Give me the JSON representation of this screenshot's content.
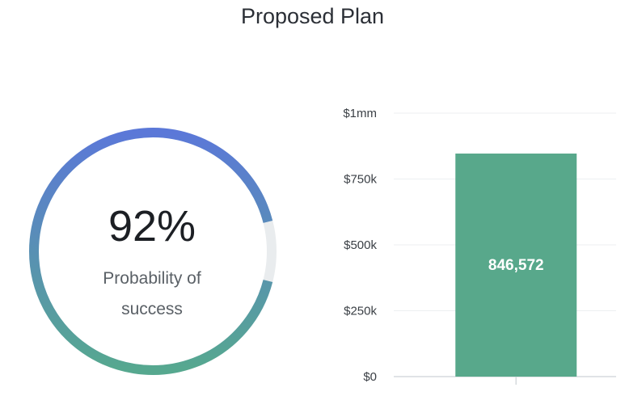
{
  "title": "Proposed Plan",
  "gauge": {
    "percent_text": "92%",
    "percent_value": 92,
    "caption_line1": "Probability of",
    "caption_line2": "success",
    "colors": {
      "start": "#5b78d8",
      "end": "#56a88f",
      "track": "#e9ecee"
    }
  },
  "chart_data": {
    "type": "bar",
    "title": "",
    "xlabel": "",
    "ylabel": "",
    "categories": [
      ""
    ],
    "values": [
      846572
    ],
    "value_labels": [
      "846,572"
    ],
    "ylim": [
      0,
      1000000
    ],
    "yticks": [
      0,
      250000,
      500000,
      750000,
      1000000
    ],
    "ytick_labels": [
      "$0",
      "$250k",
      "$500k",
      "$750k",
      "$1mm"
    ],
    "grid": true,
    "bar_color": "#58a88b"
  }
}
